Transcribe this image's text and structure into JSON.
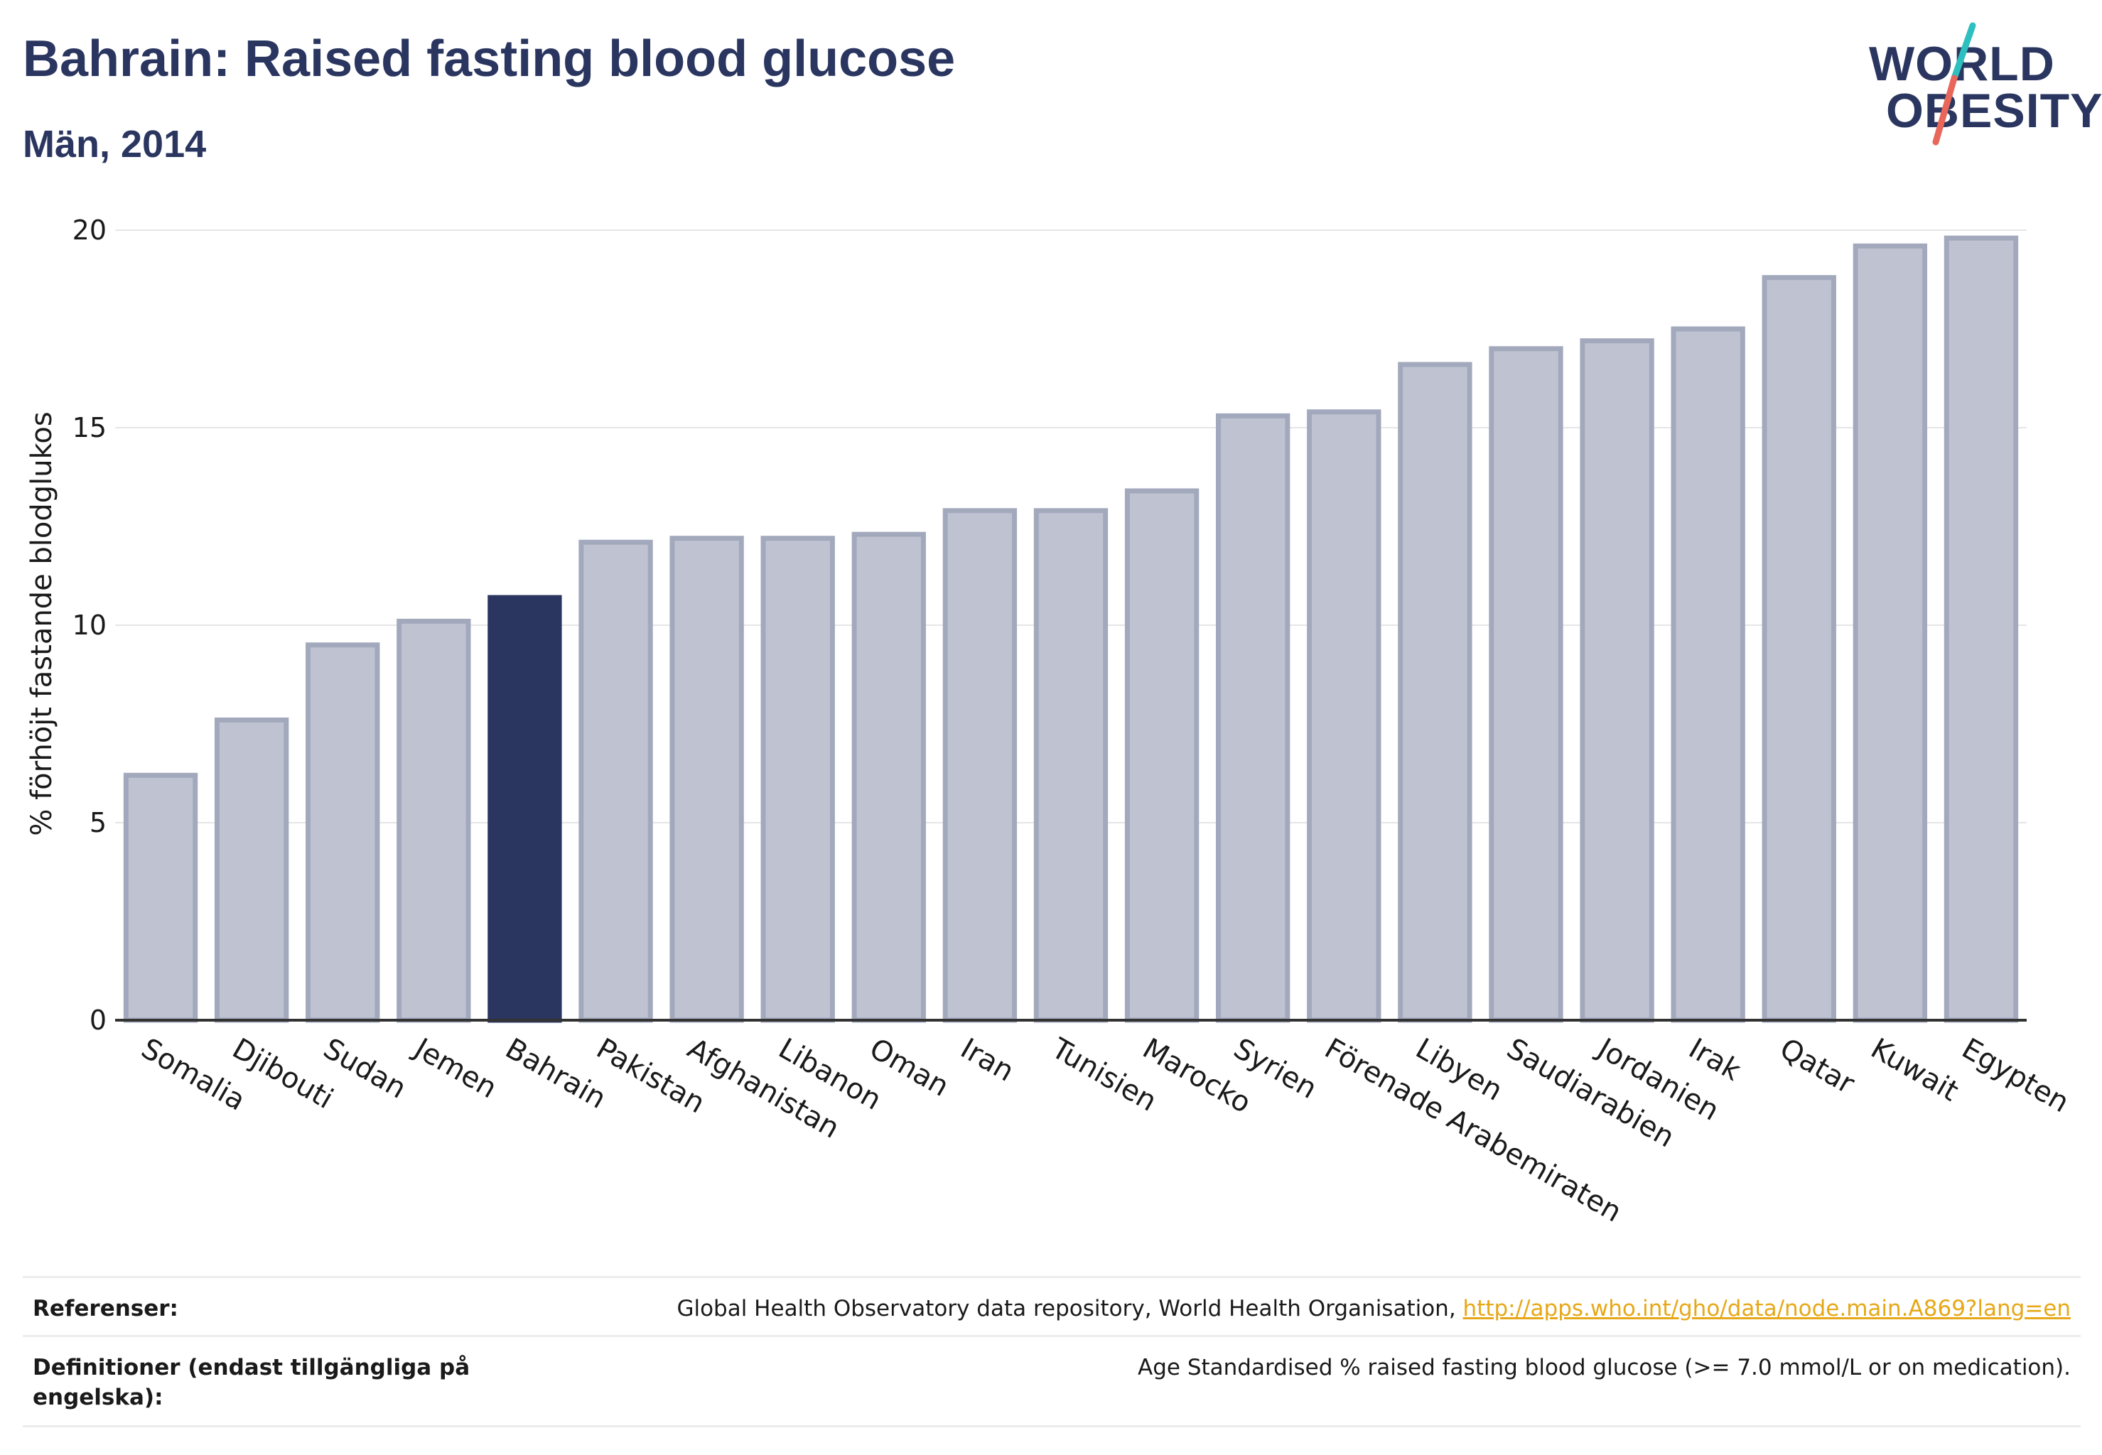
{
  "header": {
    "title": "Bahrain: Raised fasting blood glucose",
    "subtitle": "Män, 2014"
  },
  "logo": {
    "line1": "WORLD",
    "line2": "OBESITY",
    "slash_colors": [
      "#2ebfbf",
      "#e8675a"
    ]
  },
  "colors": {
    "bar": "#bfc3d1",
    "bar_stroke": "#a3a9bd",
    "highlight": "#2b3660",
    "grid": "#e6e6e6",
    "axis": "#333333",
    "title": "#2b3660",
    "link": "#e6a817"
  },
  "chart_data": {
    "type": "bar",
    "ylabel": "% förhöjt fastande blodglukos",
    "ylim": [
      0,
      20
    ],
    "yticks": [
      0,
      5,
      10,
      15,
      20
    ],
    "grid": true,
    "highlight": "Bahrain",
    "categories": [
      "Somalia",
      "Djibouti",
      "Sudan",
      "Jemen",
      "Bahrain",
      "Pakistan",
      "Afghanistan",
      "Libanon",
      "Oman",
      "Iran",
      "Tunisien",
      "Marocko",
      "Syrien",
      "Förenade Arabemiraten",
      "Libyen",
      "Saudiarabien",
      "Jordanien",
      "Irak",
      "Qatar",
      "Kuwait",
      "Egypten"
    ],
    "values": [
      6.2,
      7.6,
      9.5,
      10.1,
      10.7,
      12.1,
      12.2,
      12.2,
      12.3,
      12.9,
      12.9,
      13.4,
      15.3,
      15.4,
      16.6,
      17.0,
      17.2,
      17.5,
      18.8,
      19.6,
      19.8
    ]
  },
  "references": {
    "ref_label": "Referenser:",
    "ref_text": "Global Health Observatory data repository, World Health Organisation, ",
    "ref_link": "http://apps.who.int/gho/data/node.main.A869?lang=en",
    "def_label": "Definitioner (endast tillgängliga på engelska):",
    "def_text": "Age Standardised % raised fasting blood glucose (>= 7.0 mmol/L or on medication)."
  }
}
